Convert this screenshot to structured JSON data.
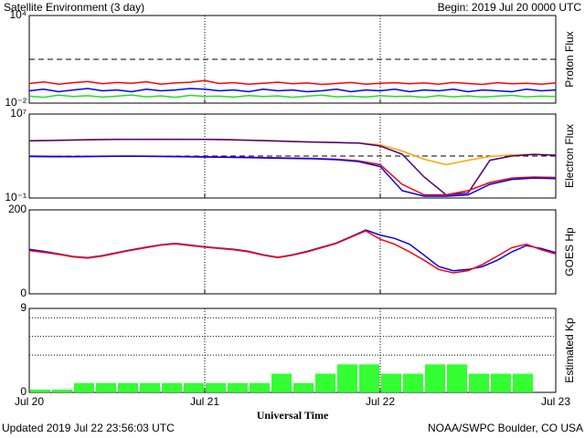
{
  "header": {
    "title": "Satellite Environment (3 day)",
    "begin": "Begin:  2019 Jul 20 0000 UTC"
  },
  "footer": {
    "updated": "Updated 2019 Jul 22 23:56:03 UTC",
    "credit": "NOAA/SWPC Boulder, CO USA"
  },
  "chart_data": [
    {
      "type": "line",
      "ylabel": "Proton Flux",
      "log": true,
      "reference_line": 10,
      "ylim": [
        0.01,
        10000
      ],
      "yticks": [
        {
          "value": 10000,
          "label": "10⁴"
        },
        {
          "value": 0.01,
          "label": "10⁻²"
        }
      ],
      "x": [
        0,
        0.083,
        0.167,
        0.25,
        0.333,
        0.417,
        0.5,
        0.583,
        0.667,
        0.75,
        0.833,
        0.917,
        1,
        1.083,
        1.167,
        1.25,
        1.333,
        1.417,
        1.5,
        1.583,
        1.667,
        1.75,
        1.833,
        1.917,
        2,
        2.083,
        2.167,
        2.25,
        2.333,
        2.417,
        2.5,
        2.583,
        2.667,
        2.75,
        2.833,
        2.917,
        3
      ],
      "series": [
        {
          "color": "#ff0000",
          "values": [
            0.22,
            0.28,
            0.2,
            0.25,
            0.3,
            0.21,
            0.26,
            0.23,
            0.29,
            0.2,
            0.24,
            0.27,
            0.35,
            0.22,
            0.25,
            0.2,
            0.23,
            0.27,
            0.21,
            0.24,
            0.19,
            0.22,
            0.26,
            0.2,
            0.23,
            0.25,
            0.21,
            0.24,
            0.2,
            0.26,
            0.22,
            0.19,
            0.25,
            0.21,
            0.23,
            0.2,
            0.24
          ]
        },
        {
          "color": "#0000ff",
          "values": [
            0.07,
            0.09,
            0.06,
            0.08,
            0.1,
            0.07,
            0.08,
            0.06,
            0.09,
            0.07,
            0.08,
            0.1,
            0.09,
            0.07,
            0.08,
            0.06,
            0.09,
            0.07,
            0.08,
            0.06,
            0.07,
            0.09,
            0.06,
            0.08,
            0.07,
            0.09,
            0.06,
            0.08,
            0.07,
            0.09,
            0.06,
            0.08,
            0.07,
            0.06,
            0.09,
            0.07,
            0.08
          ]
        },
        {
          "color": "#22dd22",
          "values": [
            0.03,
            0.025,
            0.035,
            0.028,
            0.032,
            0.026,
            0.03,
            0.036,
            0.027,
            0.031,
            0.025,
            0.034,
            0.029,
            0.03,
            0.026,
            0.033,
            0.028,
            0.031,
            0.025,
            0.03,
            0.035,
            0.027,
            0.03,
            0.026,
            0.032,
            0.028,
            0.03,
            0.025,
            0.033,
            0.027,
            0.031,
            0.026,
            0.03,
            0.034,
            0.027,
            0.03,
            0.028
          ]
        }
      ]
    },
    {
      "type": "line",
      "ylabel": "Electron Flux",
      "log": true,
      "reference_line": 1000,
      "ylim": [
        0.1,
        10000000
      ],
      "yticks": [
        {
          "value": 10000000,
          "label": "10⁷"
        },
        {
          "value": 0.1,
          "label": "10⁻¹"
        }
      ],
      "x": [
        0,
        0.125,
        0.25,
        0.375,
        0.5,
        0.625,
        0.75,
        0.875,
        1,
        1.125,
        1.25,
        1.375,
        1.5,
        1.625,
        1.75,
        1.875,
        2,
        2.125,
        2.25,
        2.375,
        2.5,
        2.625,
        2.75,
        2.875,
        3
      ],
      "series": [
        {
          "color": "#ffa500",
          "values": [
            30000,
            32000,
            35000,
            38000,
            40000,
            40000,
            41000,
            40000,
            40000,
            38000,
            33000,
            30000,
            25000,
            22000,
            20000,
            18000,
            12000,
            3000,
            500,
            150,
            400,
            900,
            1300,
            1500,
            1300
          ]
        },
        {
          "color": "#4b0082",
          "values": [
            28000,
            30000,
            33000,
            36000,
            38000,
            38000,
            39000,
            38000,
            38000,
            36000,
            32000,
            28000,
            24000,
            21000,
            19000,
            17000,
            9000,
            1500,
            10,
            0.2,
            0.3,
            400,
            1000,
            1400,
            1200
          ]
        },
        {
          "color": "#ff0000",
          "values": [
            1000,
            950,
            900,
            950,
            1000,
            1000,
            950,
            900,
            850,
            800,
            750,
            700,
            650,
            600,
            500,
            350,
            150,
            2,
            0.2,
            0.2,
            0.5,
            3,
            8,
            10,
            9
          ]
        },
        {
          "color": "#0000ff",
          "values": [
            900,
            850,
            850,
            900,
            950,
            950,
            900,
            850,
            800,
            750,
            700,
            650,
            600,
            550,
            450,
            300,
            100,
            0.5,
            0.15,
            0.15,
            0.2,
            2,
            6,
            8,
            7
          ]
        }
      ]
    },
    {
      "type": "line",
      "ylabel": "GOES Hp",
      "log": false,
      "ylim": [
        0,
        200
      ],
      "yticks": [
        200,
        0
      ],
      "x": [
        0,
        0.083,
        0.167,
        0.25,
        0.333,
        0.417,
        0.5,
        0.583,
        0.667,
        0.75,
        0.833,
        0.917,
        1,
        1.083,
        1.167,
        1.25,
        1.333,
        1.417,
        1.5,
        1.583,
        1.667,
        1.75,
        1.833,
        1.917,
        2,
        2.083,
        2.167,
        2.25,
        2.333,
        2.417,
        2.5,
        2.583,
        2.667,
        2.75,
        2.833,
        2.917,
        3
      ],
      "series": [
        {
          "color": "#0000ff",
          "values": [
            106,
            101,
            95,
            89,
            86,
            91,
            98,
            105,
            111,
            117,
            120,
            116,
            112,
            109,
            106,
            101,
            93,
            87,
            93,
            101,
            111,
            121,
            136,
            152,
            140,
            132,
            118,
            92,
            65,
            55,
            58,
            65,
            80,
            100,
            115,
            108,
            98
          ]
        },
        {
          "color": "#ff0000",
          "values": [
            103,
            99,
            94,
            88,
            85,
            90,
            97,
            104,
            110,
            116,
            119,
            115,
            111,
            108,
            105,
            100,
            92,
            86,
            92,
            100,
            110,
            120,
            135,
            150,
            130,
            118,
            100,
            80,
            58,
            50,
            55,
            70,
            90,
            110,
            118,
            105,
            95
          ]
        }
      ]
    },
    {
      "type": "bar",
      "ylabel": "Estimated Kp",
      "xlabel": "Universal Time",
      "color": "#33ff33",
      "ylim": [
        0,
        9
      ],
      "yticks": [
        9,
        0
      ],
      "dotted_lines": [
        4,
        6,
        8
      ],
      "bar_width": 0.125,
      "xlim": [
        0,
        3
      ],
      "xticks": [
        {
          "value": 0,
          "label": "Jul 20"
        },
        {
          "value": 1,
          "label": "Jul 21"
        },
        {
          "value": 2,
          "label": "Jul 22"
        },
        {
          "value": 3,
          "label": "Jul 23"
        }
      ],
      "x": [
        0,
        0.125,
        0.25,
        0.375,
        0.5,
        0.625,
        0.75,
        0.875,
        1,
        1.125,
        1.25,
        1.375,
        1.5,
        1.625,
        1.75,
        1.875,
        2,
        2.125,
        2.25,
        2.375,
        2.5,
        2.625,
        2.75
      ],
      "values": [
        0.3,
        0.3,
        1,
        1,
        1,
        1,
        1,
        1,
        1,
        1,
        1,
        2,
        1,
        2,
        3,
        3,
        2,
        2,
        3,
        3,
        2,
        2,
        2
      ]
    }
  ]
}
